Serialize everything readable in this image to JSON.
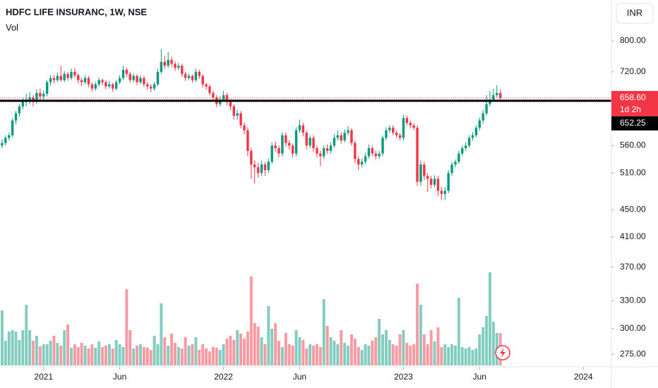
{
  "chart_data": {
    "type": "candlestick",
    "title": "HDFC LIFE INSURANC, 1W, NSE",
    "volume_title": "Vol",
    "currency": "INR",
    "log_scale": true,
    "grid": false,
    "up_color": "#089981",
    "down_color": "#f23645",
    "ylim": [
      263.4,
      919.8
    ],
    "yticks": [
      {
        "value": 800,
        "label": "800.00"
      },
      {
        "value": 720,
        "label": "720.00"
      },
      {
        "value": 560,
        "label": "560.00"
      },
      {
        "value": 510,
        "label": "510.00"
      },
      {
        "value": 450,
        "label": "450.00"
      },
      {
        "value": 410,
        "label": "410.00"
      },
      {
        "value": 370,
        "label": "370.00"
      },
      {
        "value": 330,
        "label": "330.00"
      },
      {
        "value": 300,
        "label": "300.00"
      },
      {
        "value": 275,
        "label": "275.00"
      }
    ],
    "xlim": [
      -0.6,
      176.1
    ],
    "xticks": [
      {
        "value": 12,
        "label": "2021"
      },
      {
        "value": 34,
        "label": "Jun"
      },
      {
        "value": 64,
        "label": "2022"
      },
      {
        "value": 86,
        "label": "Jun"
      },
      {
        "value": 116,
        "label": "2023"
      },
      {
        "value": 138,
        "label": "Jun"
      },
      {
        "value": 168,
        "label": "2024"
      }
    ],
    "last_price": {
      "value": 658.6,
      "label": "658.60"
    },
    "countdown": "1d 2h",
    "hline": {
      "value": 652.25,
      "label": "652.25",
      "color": "#000000"
    },
    "volume_lim": [
      0,
      40
    ],
    "ohlc": [
      [
        560,
        572,
        555,
        565
      ],
      [
        565,
        580,
        560,
        575
      ],
      [
        575,
        585,
        570,
        580
      ],
      [
        580,
        615,
        576,
        610
      ],
      [
        610,
        630,
        602,
        625
      ],
      [
        625,
        645,
        618,
        640
      ],
      [
        640,
        658,
        634,
        650
      ],
      [
        650,
        668,
        640,
        655
      ],
      [
        655,
        672,
        645,
        660
      ],
      [
        660,
        665,
        640,
        650
      ],
      [
        650,
        678,
        645,
        670
      ],
      [
        670,
        680,
        655,
        662
      ],
      [
        662,
        675,
        652,
        668
      ],
      [
        668,
        700,
        662,
        695
      ],
      [
        695,
        712,
        688,
        705
      ],
      [
        705,
        712,
        692,
        700
      ],
      [
        700,
        718,
        695,
        710
      ],
      [
        710,
        735,
        696,
        700
      ],
      [
        700,
        722,
        695,
        715
      ],
      [
        715,
        720,
        698,
        705
      ],
      [
        705,
        728,
        700,
        720
      ],
      [
        720,
        730,
        706,
        712
      ],
      [
        712,
        716,
        692,
        700
      ],
      [
        700,
        705,
        686,
        695
      ],
      [
        695,
        712,
        690,
        705
      ],
      [
        705,
        710,
        683,
        690
      ],
      [
        690,
        695,
        673,
        680
      ],
      [
        680,
        696,
        675,
        690
      ],
      [
        690,
        706,
        684,
        700
      ],
      [
        700,
        704,
        688,
        695
      ],
      [
        695,
        700,
        678,
        685
      ],
      [
        685,
        698,
        680,
        690
      ],
      [
        690,
        694,
        672,
        680
      ],
      [
        680,
        700,
        676,
        695
      ],
      [
        695,
        712,
        690,
        705
      ],
      [
        705,
        735,
        700,
        725
      ],
      [
        725,
        730,
        708,
        715
      ],
      [
        715,
        720,
        694,
        700
      ],
      [
        700,
        716,
        695,
        710
      ],
      [
        710,
        714,
        688,
        695
      ],
      [
        695,
        712,
        690,
        705
      ],
      [
        705,
        710,
        684,
        690
      ],
      [
        690,
        696,
        678,
        685
      ],
      [
        685,
        690,
        672,
        680
      ],
      [
        680,
        696,
        675,
        690
      ],
      [
        690,
        728,
        686,
        720
      ],
      [
        720,
        778,
        715,
        745
      ],
      [
        745,
        760,
        728,
        735
      ],
      [
        735,
        770,
        730,
        750
      ],
      [
        750,
        758,
        732,
        740
      ],
      [
        740,
        746,
        722,
        730
      ],
      [
        730,
        742,
        724,
        735
      ],
      [
        735,
        740,
        708,
        715
      ],
      [
        715,
        720,
        698,
        705
      ],
      [
        705,
        716,
        700,
        710
      ],
      [
        710,
        714,
        694,
        700
      ],
      [
        700,
        728,
        696,
        720
      ],
      [
        720,
        725,
        703,
        710
      ],
      [
        710,
        714,
        682,
        690
      ],
      [
        690,
        694,
        678,
        685
      ],
      [
        685,
        690,
        664,
        670
      ],
      [
        670,
        675,
        652,
        660
      ],
      [
        660,
        665,
        638,
        645
      ],
      [
        645,
        662,
        640,
        655
      ],
      [
        655,
        675,
        650,
        665
      ],
      [
        665,
        670,
        642,
        650
      ],
      [
        650,
        656,
        632,
        640
      ],
      [
        640,
        645,
        612,
        620
      ],
      [
        620,
        632,
        612,
        625
      ],
      [
        625,
        630,
        594,
        600
      ],
      [
        600,
        606,
        582,
        590
      ],
      [
        590,
        596,
        540,
        550
      ],
      [
        550,
        556,
        500,
        525
      ],
      [
        525,
        532,
        492,
        520
      ],
      [
        520,
        528,
        502,
        510
      ],
      [
        510,
        532,
        505,
        525
      ],
      [
        525,
        530,
        505,
        515
      ],
      [
        515,
        536,
        510,
        530
      ],
      [
        530,
        566,
        526,
        560
      ],
      [
        560,
        568,
        548,
        555
      ],
      [
        555,
        560,
        538,
        545
      ],
      [
        545,
        586,
        540,
        580
      ],
      [
        580,
        585,
        558,
        565
      ],
      [
        565,
        570,
        552,
        560
      ],
      [
        560,
        564,
        538,
        545
      ],
      [
        545,
        596,
        540,
        590
      ],
      [
        590,
        612,
        585,
        600
      ],
      [
        600,
        605,
        578,
        585
      ],
      [
        585,
        590,
        552,
        560
      ],
      [
        560,
        580,
        555,
        575
      ],
      [
        575,
        580,
        548,
        555
      ],
      [
        555,
        560,
        538,
        545
      ],
      [
        545,
        550,
        522,
        540
      ],
      [
        540,
        560,
        535,
        555
      ],
      [
        555,
        562,
        544,
        550
      ],
      [
        550,
        566,
        545,
        560
      ],
      [
        560,
        582,
        556,
        575
      ],
      [
        575,
        590,
        570,
        580
      ],
      [
        580,
        586,
        564,
        570
      ],
      [
        570,
        592,
        566,
        585
      ],
      [
        585,
        598,
        580,
        590
      ],
      [
        590,
        594,
        560,
        565
      ],
      [
        565,
        570,
        528,
        535
      ],
      [
        535,
        540,
        515,
        525
      ],
      [
        525,
        536,
        520,
        530
      ],
      [
        530,
        546,
        526,
        540
      ],
      [
        540,
        562,
        536,
        555
      ],
      [
        555,
        560,
        540,
        545
      ],
      [
        545,
        550,
        534,
        540
      ],
      [
        540,
        550,
        535,
        545
      ],
      [
        545,
        580,
        540,
        575
      ],
      [
        575,
        596,
        570,
        590
      ],
      [
        590,
        600,
        585,
        595
      ],
      [
        595,
        600,
        580,
        585
      ],
      [
        585,
        590,
        575,
        580
      ],
      [
        580,
        584,
        570,
        575
      ],
      [
        575,
        622,
        570,
        615
      ],
      [
        615,
        620,
        600,
        605
      ],
      [
        605,
        610,
        594,
        600
      ],
      [
        600,
        604,
        590,
        595
      ],
      [
        595,
        600,
        488,
        495
      ],
      [
        495,
        532,
        488,
        525
      ],
      [
        525,
        530,
        498,
        505
      ],
      [
        505,
        510,
        478,
        500
      ],
      [
        500,
        505,
        484,
        490
      ],
      [
        490,
        506,
        486,
        500
      ],
      [
        500,
        505,
        472,
        480
      ],
      [
        480,
        486,
        465,
        475
      ],
      [
        475,
        486,
        465,
        480
      ],
      [
        480,
        515,
        476,
        510
      ],
      [
        510,
        530,
        505,
        525
      ],
      [
        525,
        534,
        520,
        530
      ],
      [
        530,
        550,
        526,
        545
      ],
      [
        545,
        560,
        540,
        555
      ],
      [
        555,
        566,
        550,
        560
      ],
      [
        560,
        580,
        556,
        575
      ],
      [
        575,
        586,
        570,
        580
      ],
      [
        580,
        600,
        576,
        595
      ],
      [
        595,
        616,
        590,
        610
      ],
      [
        610,
        632,
        604,
        625
      ],
      [
        625,
        665,
        620,
        645
      ],
      [
        645,
        675,
        640,
        655
      ],
      [
        655,
        680,
        650,
        665
      ],
      [
        665,
        688,
        660,
        670
      ],
      [
        670,
        678,
        652,
        658.6
      ]
    ],
    "volume": [
      7.8,
      3.5,
      4.8,
      5.0,
      4.8,
      3.6,
      5.0,
      8.6,
      5.0,
      3.5,
      4.2,
      2.7,
      3.0,
      3.0,
      3.5,
      4.2,
      3.2,
      2.8,
      5.0,
      5.8,
      2.5,
      3.0,
      2.6,
      3.2,
      2.8,
      2.4,
      3.0,
      2.5,
      3.4,
      2.6,
      2.8,
      3.0,
      2.4,
      3.6,
      3.0,
      2.6,
      10.8,
      5.0,
      2.4,
      2.8,
      3.0,
      2.6,
      2.5,
      2.2,
      4.2,
      3.0,
      8.8,
      4.0,
      2.8,
      4.5,
      3.2,
      2.6,
      2.4,
      4.0,
      2.8,
      3.0,
      4.0,
      2.2,
      3.0,
      2.4,
      2.0,
      2.6,
      2.5,
      2.2,
      3.0,
      3.8,
      4.2,
      3.6,
      5.0,
      4.5,
      3.8,
      4.8,
      12.6,
      6.0,
      5.5,
      4.0,
      3.0,
      8.4,
      5.2,
      6.0,
      3.5,
      2.6,
      4.6,
      3.0,
      2.8,
      5.0,
      4.0,
      3.6,
      2.4,
      3.0,
      2.8,
      3.0,
      2.6,
      9.4,
      5.6,
      4.0,
      3.5,
      3.0,
      5.0,
      3.2,
      2.8,
      4.4,
      3.8,
      2.6,
      2.2,
      3.0,
      2.8,
      3.5,
      4.0,
      6.6,
      4.4,
      5.0,
      3.6,
      3.0,
      2.8,
      4.4,
      5.0,
      3.2,
      2.8,
      3.0,
      11.6,
      8.6,
      4.4,
      3.0,
      5.0,
      3.4,
      5.4,
      2.6,
      3.0,
      2.6,
      3.0,
      2.8,
      9.6,
      2.6,
      2.4,
      2.6,
      2.2,
      2.4,
      4.4,
      5.4,
      7.0,
      13.2,
      6.2,
      4.6,
      4.6
    ]
  }
}
